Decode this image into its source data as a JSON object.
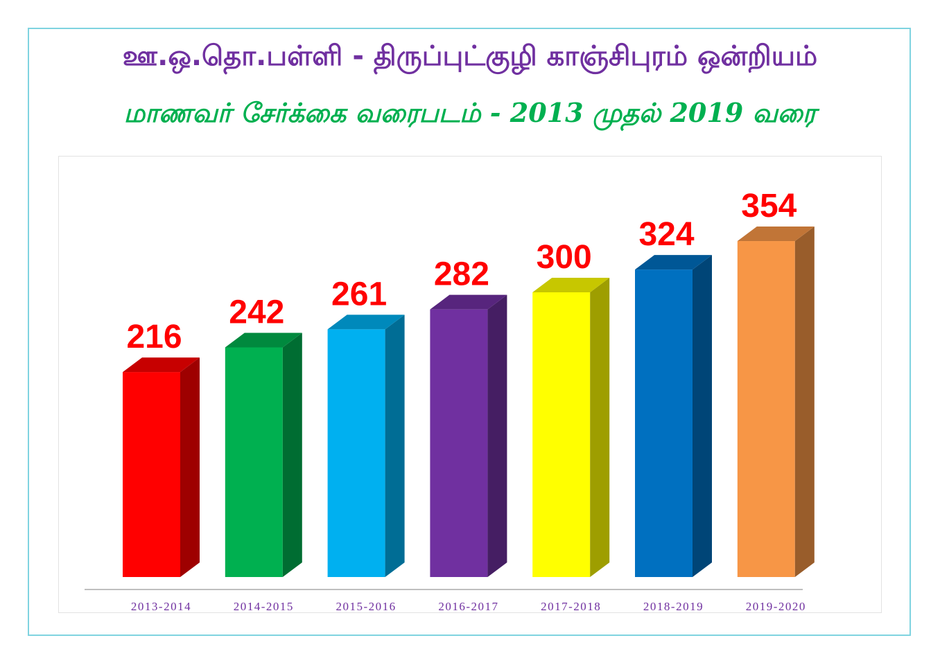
{
  "title": "ஊ.ஒ.தொ.பள்ளி - திருப்புட்குழி காஞ்சிபுரம் ஒன்றியம்",
  "subtitle": "மாணவர் சேர்க்கை வரைபடம்   - 2013 முதல் 2019 வரை",
  "chart_data": {
    "type": "bar",
    "title": "ஊ.ஒ.தொ.பள்ளி - திருப்புட்குழி காஞ்சிபுரம் ஒன்றியம்",
    "subtitle": "மாணவர் சேர்க்கை வரைபடம்   - 2013 முதல் 2019 வரை",
    "categories": [
      "2013-2014",
      "2014-2015",
      "2015-2016",
      "2016-2017",
      "2017-2018",
      "2018-2019",
      "2019-2020"
    ],
    "values": [
      216,
      242,
      261,
      282,
      300,
      324,
      354
    ],
    "data_labels": [
      "216",
      "242",
      "261",
      "282",
      "300",
      "324",
      "354"
    ],
    "bar_colors": [
      "#ff0000",
      "#00b050",
      "#00b0f0",
      "#7030a0",
      "#ffff00",
      "#0070c0",
      "#f79646"
    ],
    "label_color": "#ff0000",
    "tick_label_color": "#7030a0",
    "xlabel": "",
    "ylabel": "",
    "ylim": [
      0,
      400
    ],
    "grid": false,
    "legend": "none",
    "style": "3d-columns"
  }
}
